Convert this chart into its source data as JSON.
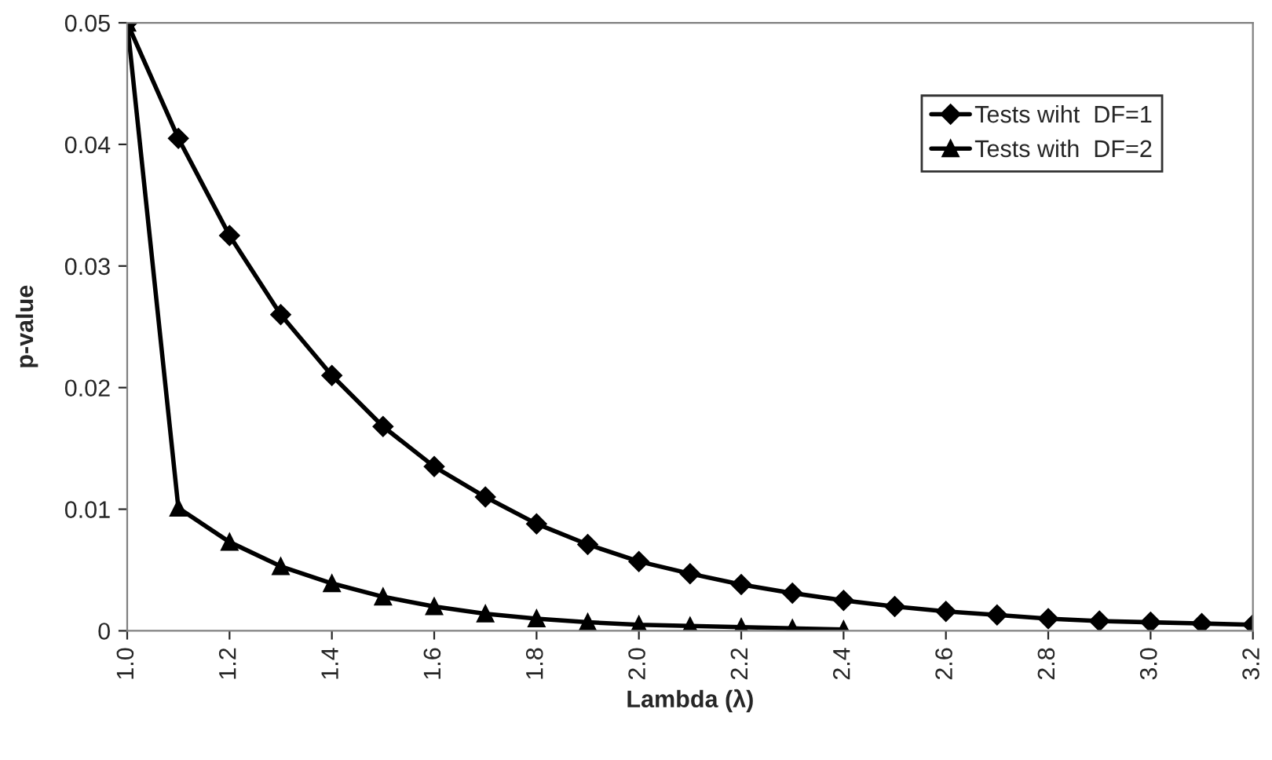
{
  "chart_data": {
    "type": "line",
    "xlabel": "Lambda (λ)",
    "ylabel": "p-value",
    "xlim": [
      1.0,
      3.2
    ],
    "ylim": [
      0,
      0.05
    ],
    "xticks": [
      {
        "value": 1.0,
        "label": "1.0"
      },
      1.2,
      1.4,
      1.6,
      1.8,
      {
        "value": 2.0,
        "label": "2.0"
      },
      2.2,
      2.4,
      2.6,
      2.8,
      {
        "value": 3.0,
        "label": "3.0"
      },
      3.2
    ],
    "yticks": [
      0,
      0.01,
      0.02,
      0.03,
      0.04,
      0.05
    ],
    "grid": false,
    "legend": "top right",
    "line_style": "solid",
    "series": [
      {
        "name": "Tests wiht  DF=1",
        "color": "#000000",
        "marker": "diamond",
        "x": [
          1.0,
          1.1,
          1.2,
          1.3,
          1.4,
          1.5,
          1.6,
          1.7,
          1.8,
          1.9,
          2.0,
          2.1,
          2.2,
          2.3,
          2.4,
          2.5,
          2.6,
          2.7,
          2.8,
          2.9,
          3.0,
          3.1,
          3.2
        ],
        "values": [
          0.05,
          0.0405,
          0.0325,
          0.026,
          0.021,
          0.0168,
          0.0135,
          0.011,
          0.0088,
          0.0071,
          0.0057,
          0.0047,
          0.0038,
          0.0031,
          0.0025,
          0.002,
          0.0016,
          0.0013,
          0.001,
          0.0008,
          0.0007,
          0.0006,
          0.0005
        ]
      },
      {
        "name": "Tests with  DF=2",
        "color": "#000000",
        "marker": "triangle",
        "x": [
          1.0,
          1.1,
          1.2,
          1.3,
          1.4,
          1.5,
          1.6,
          1.7,
          1.8,
          1.9,
          2.0,
          2.1,
          2.2,
          2.3,
          2.4
        ],
        "values": [
          0.05,
          0.0101,
          0.0073,
          0.0053,
          0.0039,
          0.0028,
          0.002,
          0.0014,
          0.001,
          0.0007,
          0.0005,
          0.0004,
          0.0003,
          0.0002,
          0.0001
        ]
      }
    ]
  }
}
